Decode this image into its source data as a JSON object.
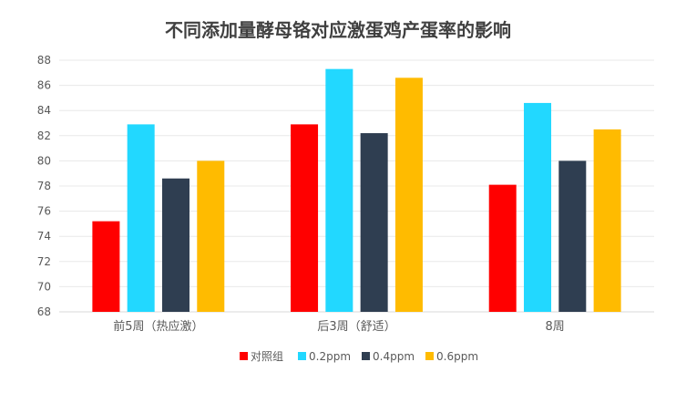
{
  "chart_data": {
    "type": "bar",
    "title": "不同添加量酵母铬对应激蛋鸡产蛋率的影响",
    "xlabel": "",
    "ylabel": "",
    "ylim": [
      68,
      88
    ],
    "yticks": [
      "68",
      "70",
      "72",
      "74",
      "76",
      "78",
      "80",
      "82",
      "84",
      "86",
      "88"
    ],
    "grid": true,
    "legend_position": "bottom",
    "categories": [
      "前5周（热应激）",
      "后3周（舒适）",
      "8周"
    ],
    "series": [
      {
        "name": "对照组",
        "color": "#ff0000",
        "values": [
          75.2,
          82.9,
          78.1
        ]
      },
      {
        "name": "0.2ppm",
        "color": "#22d8ff",
        "values": [
          82.9,
          87.3,
          84.6
        ]
      },
      {
        "name": "0.4ppm",
        "color": "#2f3e51",
        "values": [
          78.6,
          82.2,
          80.0
        ]
      },
      {
        "name": "0.6ppm",
        "color": "#ffbb00",
        "values": [
          80.0,
          86.6,
          82.5
        ]
      }
    ]
  }
}
